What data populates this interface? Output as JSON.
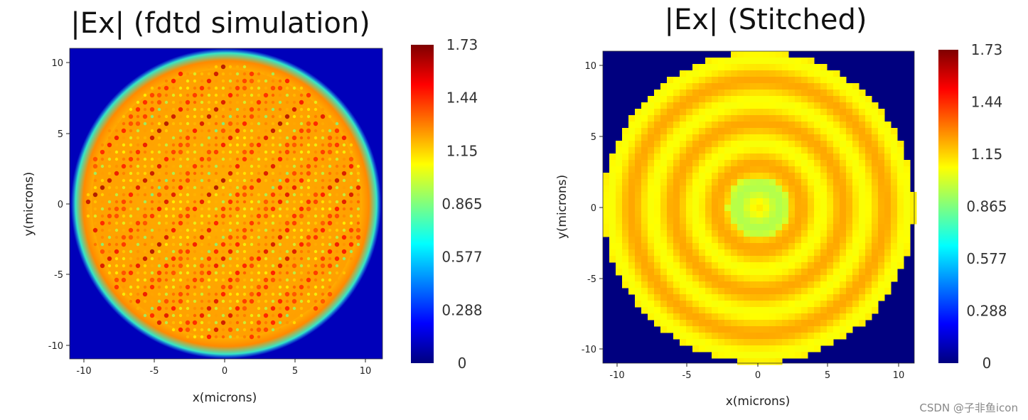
{
  "chart_data": [
    {
      "type": "heatmap",
      "title": "|Ex| (fdtd simulation)",
      "xlabel": "x(microns)",
      "ylabel": "y(microns)",
      "xlim": [
        -11,
        11
      ],
      "ylim": [
        -11,
        11
      ],
      "xticks": [
        "-10",
        "-5",
        "0",
        "5",
        "10"
      ],
      "yticks": [
        "10",
        "5",
        "0",
        "-5",
        "-10"
      ],
      "colormap": "jet",
      "colorbar": {
        "min": 0,
        "max": 1.73,
        "ticks": [
          "1.73",
          "1.44",
          "1.15",
          "0.865",
          "0.577",
          "0.288",
          "0"
        ]
      },
      "field": {
        "shape": "disk",
        "radius": 10.5,
        "inside_level": 1.25,
        "outside_level": 0.1,
        "pattern": "fine interference speckle"
      }
    },
    {
      "type": "heatmap",
      "title": "|Ex| (Stitched)",
      "xlabel": "x(microns)",
      "ylabel": "y(microns)",
      "xlim": [
        -11,
        11
      ],
      "ylim": [
        -11,
        11
      ],
      "xticks": [
        "-10",
        "-5",
        "0",
        "5",
        "10"
      ],
      "yticks": [
        "10",
        "5",
        "0",
        "-5",
        "-10"
      ],
      "colormap": "jet",
      "colorbar": {
        "min": 0,
        "max": 1.73,
        "ticks": [
          "1.73",
          "1.44",
          "1.15",
          "0.865",
          "0.577",
          "0.288",
          "0"
        ]
      },
      "field": {
        "shape": "disk",
        "radius": 11,
        "inside_level": 1.15,
        "outside_level": 0,
        "pattern": "concentric rings",
        "pixelated": true
      }
    }
  ],
  "colors": {
    "jet": [
      "#00007f",
      "#0000ff",
      "#007fff",
      "#00ffff",
      "#7fff7f",
      "#ffff00",
      "#ff7f00",
      "#ff0000",
      "#7f0000"
    ]
  },
  "watermark": "CSDN @子非鱼icon"
}
